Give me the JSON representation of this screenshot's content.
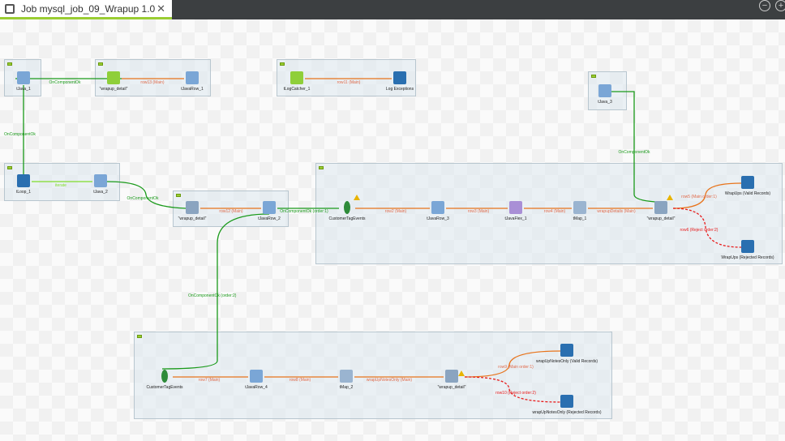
{
  "tab": {
    "title": "Job mysql_job_09_Wrapup 1.0",
    "close": "✕"
  },
  "window": {
    "minimize": "−",
    "add": "+"
  },
  "nodes": [
    {
      "label": "tJava_1",
      "icon": "java-icon",
      "color": "#7aa6d6"
    },
    {
      "label": "\"wrapup_detail\"",
      "icon": "db-input-icon",
      "color": "#8fcf3a"
    },
    {
      "label": "tJavaRow_1",
      "icon": "java-row-icon",
      "color": "#7aa6d6"
    },
    {
      "label": "tLogCatcher_1",
      "icon": "log-catcher-icon",
      "color": "#8fcf3a"
    },
    {
      "label": "Log Exceptions",
      "icon": "log-row-icon",
      "color": "#2a6fb0"
    },
    {
      "label": "tJava_3",
      "icon": "java-icon",
      "color": "#7aa6d6"
    },
    {
      "label": "tLoop_1",
      "icon": "loop-icon",
      "color": "#2a6fb0"
    },
    {
      "label": "tJava_2",
      "icon": "java-icon",
      "color": "#7aa6d6"
    },
    {
      "label": "\"wrapup_detail\"",
      "icon": "db-input-icon",
      "color": "#8aa4c0"
    },
    {
      "label": "tJavaRow_2",
      "icon": "java-row-icon",
      "color": "#7aa6d6"
    },
    {
      "label": "CustomerTagEvents",
      "icon": "mongodb-icon",
      "color": "#2e8b3a"
    },
    {
      "label": "tJavaRow_3",
      "icon": "java-row-icon",
      "color": "#7aa6d6"
    },
    {
      "label": "tJavaFlex_1",
      "icon": "java-flex-icon",
      "color": "#a98fd6"
    },
    {
      "label": "tMap_1",
      "icon": "map-icon",
      "color": "#9ab4d0"
    },
    {
      "label": "\"wrapup_detail\"",
      "icon": "db-output-icon",
      "color": "#8aa4c0"
    },
    {
      "label": "WrapUps (Valid Records)",
      "icon": "log-row-icon",
      "color": "#2a6fb0"
    },
    {
      "label": "WrapUps (Rejected Records)",
      "icon": "log-row-icon",
      "color": "#2a6fb0"
    },
    {
      "label": "CustomerTagEvents",
      "icon": "mongodb-icon",
      "color": "#2e8b3a"
    },
    {
      "label": "tJavaRow_4",
      "icon": "java-row-icon",
      "color": "#7aa6d6"
    },
    {
      "label": "tMap_2",
      "icon": "map-icon",
      "color": "#9ab4d0"
    },
    {
      "label": "\"wrapup_detail\"",
      "icon": "db-output-icon",
      "color": "#8aa4c0"
    },
    {
      "label": "wrapUpNotesOnly (Valid Records)",
      "icon": "log-row-icon",
      "color": "#2a6fb0"
    },
    {
      "label": "wrapUpNotesOnly (Rejected Records)",
      "icon": "log-row-icon",
      "color": "#2a6fb0"
    }
  ],
  "links": [
    {
      "label": "OnComponentOk",
      "kind": "trigger"
    },
    {
      "label": "row13 (Main)",
      "kind": "main"
    },
    {
      "label": "row11 (Main)",
      "kind": "main"
    },
    {
      "label": "OnComponentOk",
      "kind": "trigger"
    },
    {
      "label": "iterate",
      "kind": "iterate"
    },
    {
      "label": "OnComponentOk",
      "kind": "trigger"
    },
    {
      "label": "row12 (Main)",
      "kind": "main"
    },
    {
      "label": "OnComponentOk (order:1)",
      "kind": "trigger"
    },
    {
      "label": "row2 (Main)",
      "kind": "main"
    },
    {
      "label": "row3 (Main)",
      "kind": "main"
    },
    {
      "label": "row4 (Main)",
      "kind": "main"
    },
    {
      "label": "wrapupDetails (Main)",
      "kind": "main"
    },
    {
      "label": "OnComponentOk",
      "kind": "trigger"
    },
    {
      "label": "row5 (Main order:1)",
      "kind": "main"
    },
    {
      "label": "row6 (Reject order:2)",
      "kind": "reject"
    },
    {
      "label": "OnComponentOk (order:2)",
      "kind": "trigger"
    },
    {
      "label": "row7 (Main)",
      "kind": "main"
    },
    {
      "label": "row8 (Main)",
      "kind": "main"
    },
    {
      "label": "wrapUpNotesOnly (Main)",
      "kind": "main"
    },
    {
      "label": "row9 (Main order:1)",
      "kind": "main"
    },
    {
      "label": "row10 (Reject order:2)",
      "kind": "reject"
    }
  ],
  "colors": {
    "trigger": "#1a9a1a",
    "main": "#e8731a",
    "iterate": "#7fdc2a",
    "reject": "#e81a1a",
    "accent": "#9acd32"
  }
}
